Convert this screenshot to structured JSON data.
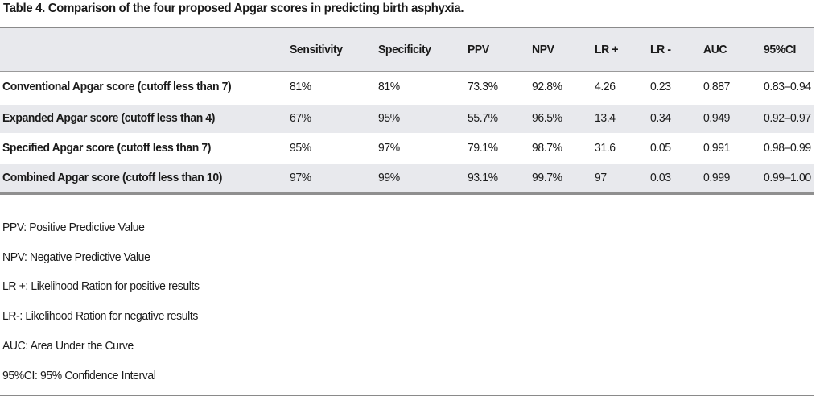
{
  "caption": "Table 4.  Comparison of the four proposed Apgar scores in predicting birth asphyxia.",
  "columns": [
    "Sensitivity",
    "Specificity",
    "PPV",
    "NPV",
    "LR +",
    "LR -",
    "AUC",
    "95%CI"
  ],
  "rows": [
    {
      "label": "Conventional Apgar score (cutoff less than 7)",
      "cells": [
        "81%",
        "81%",
        "73.3%",
        "92.8%",
        "4.26",
        "0.23",
        "0.887",
        "0.83–0.94"
      ]
    },
    {
      "label": "Expanded Apgar score (cutoff less than 4)",
      "cells": [
        "67%",
        "95%",
        "55.7%",
        "96.5%",
        "13.4",
        "0.34",
        "0.949",
        "0.92–0.97"
      ]
    },
    {
      "label": "Specified Apgar score (cutoff less than 7)",
      "cells": [
        "95%",
        "97%",
        "79.1%",
        "98.7%",
        "31.6",
        "0.05",
        "0.991",
        "0.98–0.99"
      ]
    },
    {
      "label": "Combined Apgar score (cutoff less than 10)",
      "cells": [
        "97%",
        "99%",
        "93.1%",
        "99.7%",
        "97",
        "0.03",
        "0.999",
        "0.99–1.00"
      ]
    }
  ],
  "notes": [
    "PPV: Positive Predictive Value",
    "NPV: Negative Predictive Value",
    "LR +: Likelihood Ration for positive results",
    "LR-: Likelihood Ration for negative results",
    "AUC: Area Under the Curve",
    "95%CI: 95% Confidence Interval"
  ]
}
